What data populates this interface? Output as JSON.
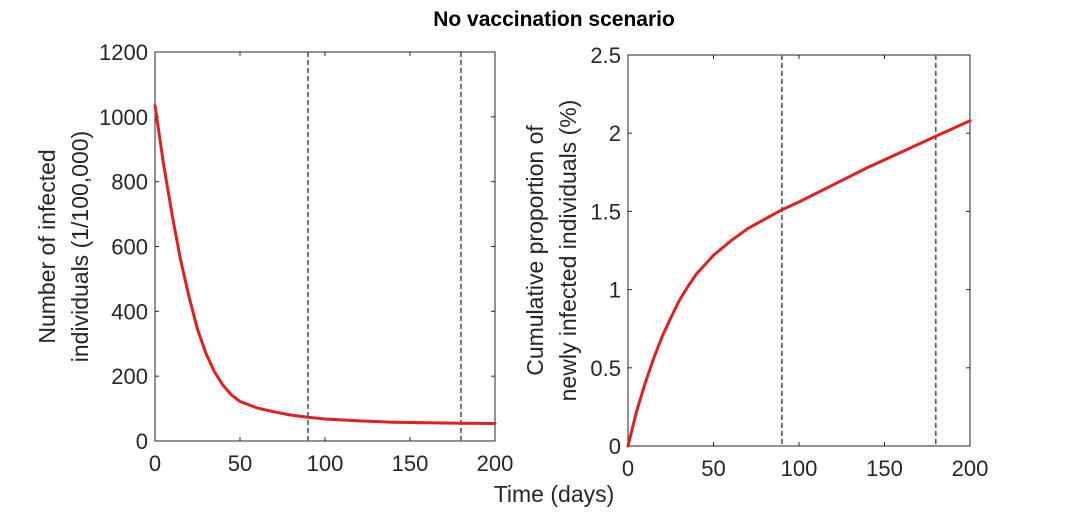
{
  "figure": {
    "title": "No vaccination scenario",
    "shared_xlabel": "Time (days)"
  },
  "colors": {
    "curve": "#e02020",
    "reference_lines": "#555555",
    "axes": "#262626"
  },
  "chart_data": [
    {
      "type": "line",
      "ylabel_lines": [
        "Number of infected",
        "individuals (1/100,000)"
      ],
      "xlabel": "",
      "xlim": [
        0,
        200
      ],
      "ylim": [
        0,
        1200
      ],
      "xticks": [
        0,
        50,
        100,
        150,
        200
      ],
      "yticks": [
        0,
        200,
        400,
        600,
        800,
        1000,
        1200
      ],
      "grid": false,
      "reference_lines_x": [
        90,
        180
      ],
      "series": [
        {
          "x": [
            0,
            5,
            10,
            15,
            20,
            25,
            30,
            35,
            40,
            45,
            50,
            60,
            70,
            80,
            90,
            100,
            120,
            140,
            160,
            180,
            200
          ],
          "y": [
            1035,
            855,
            700,
            560,
            445,
            345,
            270,
            213,
            172,
            142,
            122,
            102,
            90,
            80,
            73,
            68,
            62,
            58,
            56,
            55,
            54
          ]
        }
      ]
    },
    {
      "type": "line",
      "ylabel_lines": [
        "Cumulative proportion of",
        "newly infected individuals (%)"
      ],
      "xlabel": "",
      "xlim": [
        0,
        200
      ],
      "ylim": [
        0,
        2.5
      ],
      "xticks": [
        0,
        50,
        100,
        150,
        200
      ],
      "yticks": [
        0,
        0.5,
        1,
        1.5,
        2,
        2.5
      ],
      "grid": false,
      "reference_lines_x": [
        90,
        180
      ],
      "series": [
        {
          "x": [
            0,
            5,
            10,
            15,
            20,
            25,
            30,
            35,
            40,
            45,
            50,
            60,
            70,
            80,
            90,
            100,
            120,
            140,
            160,
            180,
            200
          ],
          "y": [
            0,
            0.22,
            0.4,
            0.56,
            0.7,
            0.82,
            0.93,
            1.02,
            1.1,
            1.16,
            1.22,
            1.31,
            1.39,
            1.45,
            1.51,
            1.56,
            1.67,
            1.78,
            1.88,
            1.98,
            2.08
          ]
        }
      ]
    }
  ]
}
